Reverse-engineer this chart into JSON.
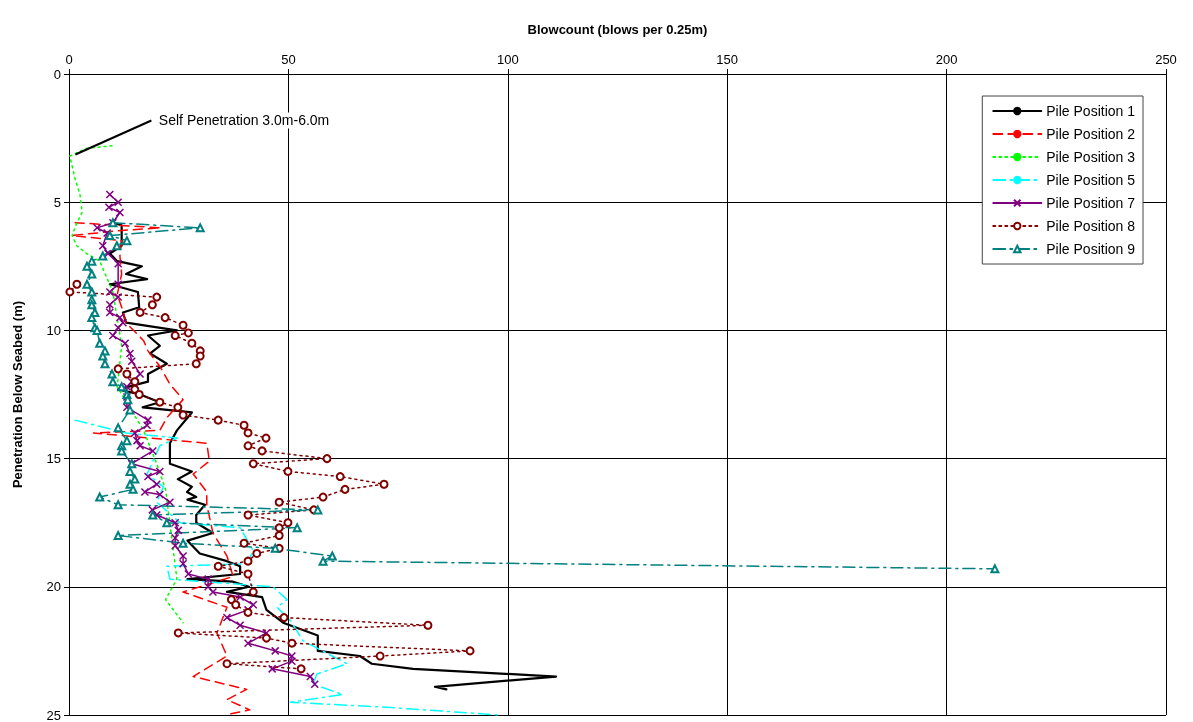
{
  "chart_data": {
    "type": "line",
    "xlabel": "Blowcount (blows per 0.25m)",
    "ylabel": "Penetration Below Seabed (m)",
    "xlim": [
      0,
      250
    ],
    "xticks": [
      0,
      50,
      100,
      150,
      200,
      250
    ],
    "ylim": [
      25,
      0
    ],
    "yticks": [
      0,
      5,
      10,
      15,
      20,
      25
    ],
    "grid": true,
    "legend": "top right",
    "annotations": [
      {
        "text": "Self Penetration 3.0m-6.0m",
        "x": 1,
        "y": 3.1
      }
    ],
    "series": [
      {
        "name": "Pile Position 1",
        "color": "#000000",
        "line_style": "solid",
        "marker": "none",
        "x": [
          9.8,
          12,
          12,
          9.3,
          11,
          16.6,
          13,
          17.8,
          9.3,
          15.7,
          16,
          12.3,
          13,
          24.6,
          18,
          20.7,
          18.5,
          22.3,
          18,
          18,
          11.2,
          16.2,
          20.7,
          16.8,
          28,
          24.6,
          23,
          23,
          28,
          24.8,
          28,
          26.9,
          29,
          27,
          31,
          29,
          29,
          32.8,
          27,
          29.8,
          36,
          39,
          39,
          27,
          37.4,
          41,
          36,
          44,
          45,
          48.8,
          56.7,
          56.7,
          66.3,
          69,
          78.4,
          111,
          83.4,
          86
        ],
        "values": [
          5.8,
          5.9,
          6.7,
          7.0,
          7.3,
          7.5,
          7.8,
          8.0,
          8.2,
          8.5,
          9.1,
          9.3,
          9.7,
          10.0,
          10.2,
          10.6,
          10.9,
          11.3,
          11.7,
          12.0,
          12.3,
          12.5,
          12.8,
          13.0,
          13.2,
          13.9,
          14.4,
          15.2,
          15.5,
          15.8,
          16.1,
          16.3,
          16.5,
          16.6,
          16.8,
          17.2,
          17.5,
          17.9,
          18.2,
          18.7,
          19.0,
          19.2,
          19.5,
          19.7,
          19.8,
          20.0,
          20.2,
          20.4,
          20.9,
          21.4,
          21.9,
          22.5,
          22.7,
          23.0,
          23.2,
          23.5,
          23.9,
          24.0
        ]
      },
      {
        "name": "Pile Position 2",
        "color": "#ff0000",
        "line_style": "dashed",
        "marker": "none",
        "x": [
          1.4,
          21,
          12,
          0.7,
          12,
          11.6,
          12,
          11,
          12,
          13,
          17,
          18,
          20.7,
          23,
          26,
          22.3,
          20.7,
          5.6,
          31.4,
          32,
          28.3,
          31.4,
          31.4,
          32.8,
          36,
          37.4,
          26,
          36,
          33.7,
          36,
          28.3,
          40.5,
          36,
          41.2,
          35.6
        ],
        "values": [
          5.8,
          6.0,
          6.1,
          6.3,
          6.5,
          7.1,
          7.8,
          8.6,
          9.1,
          9.7,
          10.4,
          10.8,
          11.4,
          12.1,
          12.7,
          13.4,
          13.9,
          14.0,
          14.4,
          15.1,
          15.6,
          16.3,
          16.8,
          17.9,
          18.8,
          19.6,
          20.2,
          20.8,
          21.8,
          22.7,
          23.5,
          24.0,
          24.4,
          24.8,
          25.0
        ]
      },
      {
        "name": "Pile Position 3",
        "color": "#00ff00",
        "line_style": "dotted",
        "marker": "none",
        "x": [
          9.8,
          4,
          0.2,
          1.4,
          2.5,
          3,
          1.8,
          0.7,
          1.8,
          4,
          7,
          10,
          12,
          11,
          17,
          20,
          22,
          24.6,
          22,
          26
        ],
        "values": [
          2.8,
          2.9,
          3.2,
          4.1,
          4.7,
          5.4,
          5.8,
          6.3,
          6.7,
          7.0,
          7.3,
          8.5,
          10.6,
          12.2,
          13.9,
          15.2,
          16.2,
          19.7,
          20.5,
          21.4
        ]
      },
      {
        "name": "Pile Position 5",
        "color": "#00ffff",
        "line_style": "dashdot",
        "marker": "none",
        "x": [
          1.4,
          13,
          24.6,
          20.7,
          17.8,
          21.5,
          20,
          25.3,
          39,
          42,
          40.5,
          22.3,
          23,
          46.5,
          49.7,
          47.4,
          50.4,
          53.3,
          58.8,
          63.4,
          56.5,
          55.6,
          62.4,
          50.4,
          72.5,
          98
        ],
        "values": [
          13.5,
          14.0,
          14.2,
          14.5,
          15.6,
          16.1,
          16.7,
          17.5,
          17.7,
          18.6,
          19.1,
          19.2,
          19.7,
          20.0,
          20.5,
          20.8,
          21.3,
          22.1,
          22.6,
          23.0,
          23.4,
          23.8,
          24.2,
          24.5,
          24.7,
          25.0
        ]
      },
      {
        "name": "Pile Position 7",
        "color": "#800080",
        "line_style": "solid",
        "marker": "cross",
        "x": [
          9.3,
          11.2,
          9.1,
          11.6,
          10,
          6.4,
          8.7,
          7.7,
          8.9,
          11.2,
          11.2,
          9.3,
          11.2,
          9.3,
          9.3,
          11.6,
          12.3,
          11.2,
          10,
          12.8,
          13.9,
          14.3,
          16.2,
          14.3,
          13.2,
          13.2,
          13.2,
          18,
          17.8,
          15,
          15.5,
          16.2,
          19.1,
          14.3,
          20.7,
          18,
          20,
          17.3,
          20.7,
          23,
          19,
          20,
          24.2,
          24.9,
          24.2,
          24.2,
          26,
          26,
          27.2,
          31.7,
          31.7,
          32.8,
          39,
          42,
          40.8,
          36,
          39,
          45,
          40.8,
          47,
          50.8,
          50.8,
          46.3,
          55,
          56
        ],
        "values": [
          4.7,
          5.0,
          5.2,
          5.4,
          5.8,
          6.0,
          6.2,
          6.7,
          7.0,
          7.4,
          8.2,
          8.5,
          8.7,
          9.0,
          9.3,
          9.5,
          9.7,
          9.9,
          10.2,
          10.5,
          10.9,
          11.2,
          11.7,
          12.0,
          12.2,
          12.6,
          13.0,
          13.5,
          13.7,
          14.0,
          14.3,
          14.5,
          14.7,
          15.2,
          15.5,
          15.7,
          16.0,
          16.3,
          16.4,
          16.7,
          17.0,
          17.2,
          17.5,
          17.8,
          18.1,
          18.4,
          18.8,
          19.1,
          19.5,
          19.7,
          20.0,
          20.2,
          20.4,
          20.7,
          20.9,
          21.2,
          21.5,
          21.8,
          22.2,
          22.5,
          22.7,
          22.9,
          23.2,
          23.5,
          23.8
        ]
      },
      {
        "name": "Pile Position 8",
        "color": "#800000",
        "line_style": "dotted",
        "marker": "circle",
        "x": [
          1.8,
          0.2,
          20,
          19,
          16.2,
          21.9,
          26,
          27.2,
          24.2,
          28,
          29.9,
          29.9,
          29,
          11.2,
          13.2,
          15,
          15,
          16,
          20.7,
          24.8,
          26,
          34,
          39.9,
          40.8,
          44.9,
          40.8,
          44,
          58.8,
          42,
          49.9,
          61.8,
          71.8,
          62.9,
          57.9,
          47.9,
          55.8,
          40.8,
          49.9,
          47.9,
          47.9,
          39.9,
          47.9,
          42.8,
          40.8,
          34,
          40.8,
          42,
          37,
          38,
          40.8,
          49,
          81.8,
          24.9,
          45,
          50.8,
          91.4,
          70.9,
          36,
          52.9
        ],
        "values": [
          8.2,
          8.5,
          8.7,
          9.0,
          9.3,
          9.5,
          9.8,
          10.1,
          10.2,
          10.5,
          10.8,
          11.0,
          11.3,
          11.5,
          11.7,
          12.0,
          12.3,
          12.5,
          12.8,
          13.0,
          13.3,
          13.5,
          13.7,
          14.0,
          14.2,
          14.5,
          14.7,
          15.0,
          15.2,
          15.5,
          15.7,
          16.0,
          16.2,
          16.5,
          16.7,
          17.0,
          17.2,
          17.5,
          17.7,
          18.0,
          18.3,
          18.5,
          18.7,
          19.0,
          19.2,
          19.5,
          20.2,
          20.5,
          20.7,
          21.0,
          21.2,
          21.5,
          21.8,
          22.0,
          22.2,
          22.5,
          22.7,
          23.0,
          23.2
        ]
      },
      {
        "name": "Pile Position 9",
        "color": "#008080",
        "line_style": "dashdot",
        "marker": "triangle",
        "x": [
          10,
          29.9,
          9.3,
          13.2,
          10.9,
          7.7,
          5.2,
          4.1,
          5.2,
          4.1,
          5.2,
          5.2,
          5.2,
          5.9,
          5.2,
          5.9,
          6.4,
          7,
          8.2,
          7.7,
          8.2,
          9.8,
          10,
          12,
          13.2,
          13.4,
          13.9,
          11.2,
          13.2,
          12,
          12,
          14.3,
          13.9,
          15,
          13.9,
          14.6,
          7,
          11.2,
          56.7,
          19.1,
          22.3,
          52,
          11.2,
          26,
          47,
          60,
          57.9,
          211
        ],
        "values": [
          5.8,
          6.0,
          6.3,
          6.5,
          6.7,
          7.1,
          7.3,
          7.5,
          7.8,
          8.2,
          8.5,
          8.8,
          9.0,
          9.3,
          9.5,
          9.9,
          10.0,
          10.5,
          10.8,
          11.0,
          11.3,
          11.7,
          12.0,
          12.2,
          12.5,
          12.7,
          13.1,
          13.8,
          14.3,
          14.5,
          14.7,
          15.2,
          15.5,
          15.8,
          16.0,
          16.2,
          16.5,
          16.8,
          17.0,
          17.2,
          17.5,
          17.7,
          18.0,
          18.3,
          18.5,
          18.8,
          19.0,
          19.3
        ]
      }
    ]
  }
}
